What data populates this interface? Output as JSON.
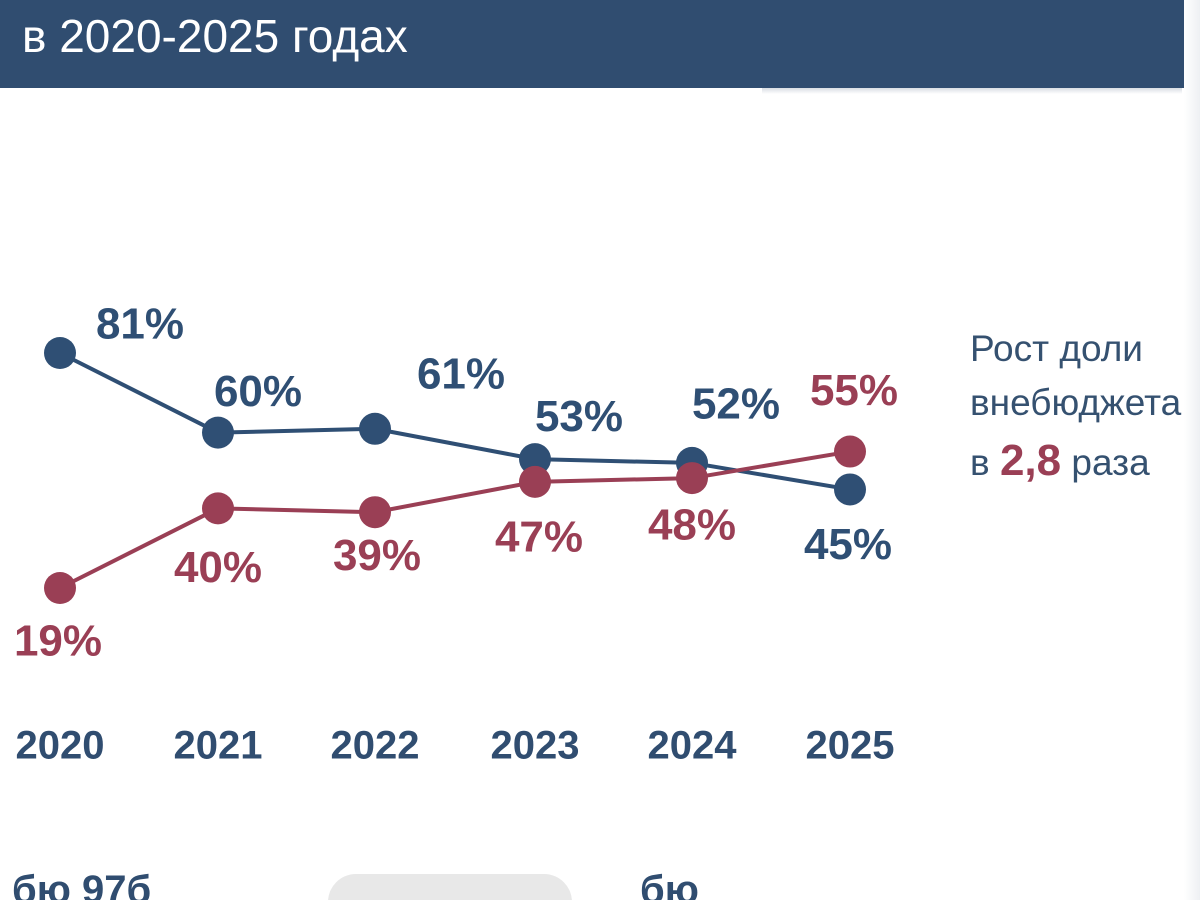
{
  "header": {
    "title": "в 2020-2025 годах"
  },
  "chart_data": {
    "type": "line",
    "categories": [
      "2020",
      "2021",
      "2022",
      "2023",
      "2024",
      "2025"
    ],
    "series": [
      {
        "name": "",
        "color": "#2f4f74",
        "values": [
          81,
          60,
          61,
          53,
          52,
          45
        ],
        "labels": [
          "81%",
          "60%",
          "61%",
          "53%",
          "52%",
          "45%"
        ]
      },
      {
        "name": "",
        "color": "#9a3f55",
        "values": [
          19,
          40,
          39,
          47,
          48,
          55
        ],
        "labels": [
          "19%",
          "40%",
          "39%",
          "47%",
          "48%",
          "55%"
        ]
      }
    ],
    "title": "",
    "xlabel": "",
    "ylabel": "",
    "grid": false
  },
  "note": {
    "line1": "Рост доли",
    "line2": "внебюджета",
    "prefix": "в",
    "multiplier": "2,8",
    "suffix": "раза"
  },
  "legend": {
    "left_text": "бю    97б",
    "right_text": "бю",
    "colors": [
      "#2f4f74",
      "#9a3f55"
    ]
  },
  "colors": {
    "header_bg": "#304d70",
    "blue": "#2f4f74",
    "red": "#9a3f55"
  }
}
